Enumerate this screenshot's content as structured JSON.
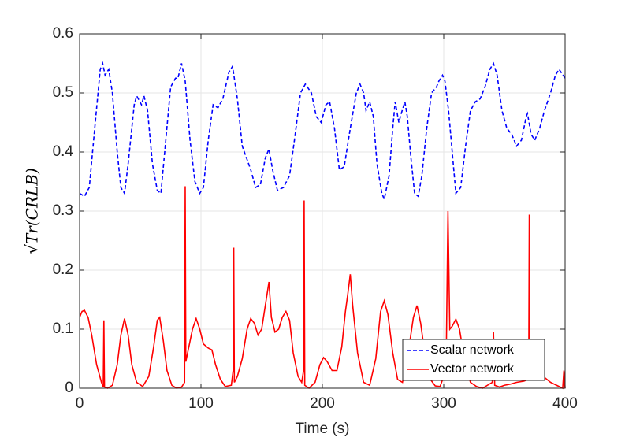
{
  "chart_data": {
    "type": "line",
    "xlabel": "Time (s)",
    "ylabel": "√Tr(CRLB)",
    "xlim": [
      0,
      400
    ],
    "xticks": [
      0,
      100,
      200,
      300,
      400
    ],
    "ylim": [
      0,
      0.6
    ],
    "yticks": [
      0,
      0.1,
      0.2,
      0.3,
      0.4,
      0.5,
      0.6
    ],
    "grid": true,
    "legend": "lower right",
    "series": [
      {
        "name": "Scalar network",
        "color": "#0000ff",
        "dash": "dashed",
        "x": [
          0,
          4,
          8,
          12,
          17,
          19,
          21,
          24,
          27,
          31,
          34,
          37,
          40,
          45,
          47,
          51,
          53,
          56,
          60,
          64,
          67,
          71,
          75,
          79,
          81,
          84,
          87,
          91,
          95,
          99,
          102,
          106,
          110,
          114,
          118,
          123,
          126,
          130,
          134,
          141,
          145,
          149,
          153,
          156,
          159,
          163,
          168,
          173,
          177,
          182,
          186,
          191,
          195,
          199,
          203,
          206,
          210,
          214,
          218,
          223,
          228,
          231,
          234,
          236,
          239,
          242,
          245,
          249,
          251,
          255,
          258,
          260,
          263,
          265,
          268,
          270,
          273,
          276,
          279,
          282,
          286,
          290,
          294,
          296,
          299,
          301,
          304,
          307,
          310,
          314,
          318,
          322,
          326,
          330,
          334,
          338,
          341,
          344,
          348,
          352,
          356,
          360,
          364,
          368,
          369,
          372,
          375,
          379,
          383,
          388,
          392,
          395,
          400
        ],
        "values": [
          0.33,
          0.325,
          0.34,
          0.43,
          0.54,
          0.55,
          0.53,
          0.54,
          0.5,
          0.4,
          0.34,
          0.33,
          0.38,
          0.48,
          0.495,
          0.48,
          0.495,
          0.47,
          0.38,
          0.335,
          0.33,
          0.42,
          0.51,
          0.525,
          0.525,
          0.55,
          0.52,
          0.42,
          0.35,
          0.33,
          0.34,
          0.42,
          0.48,
          0.475,
          0.49,
          0.535,
          0.545,
          0.49,
          0.41,
          0.37,
          0.34,
          0.345,
          0.39,
          0.405,
          0.37,
          0.335,
          0.34,
          0.36,
          0.42,
          0.5,
          0.515,
          0.5,
          0.46,
          0.45,
          0.48,
          0.485,
          0.44,
          0.37,
          0.375,
          0.44,
          0.5,
          0.515,
          0.5,
          0.47,
          0.485,
          0.46,
          0.38,
          0.33,
          0.32,
          0.36,
          0.44,
          0.485,
          0.45,
          0.465,
          0.485,
          0.46,
          0.39,
          0.33,
          0.325,
          0.36,
          0.44,
          0.5,
          0.51,
          0.52,
          0.53,
          0.52,
          0.47,
          0.4,
          0.33,
          0.34,
          0.41,
          0.47,
          0.485,
          0.49,
          0.51,
          0.54,
          0.55,
          0.53,
          0.47,
          0.44,
          0.43,
          0.41,
          0.42,
          0.46,
          0.465,
          0.43,
          0.42,
          0.44,
          0.47,
          0.5,
          0.53,
          0.54,
          0.525
        ]
      },
      {
        "name": "Vector network",
        "color": "#ff0000",
        "dash": "solid",
        "x": [
          0,
          2,
          4,
          7,
          10,
          14,
          18,
          19.5,
          20,
          20.5,
          23,
          27,
          31,
          34,
          37,
          40,
          43,
          47,
          52,
          57,
          61,
          64,
          66,
          69,
          72,
          76,
          80,
          84,
          86.5,
          87,
          87.5,
          89,
          93,
          96,
          99,
          102,
          106,
          109,
          112,
          116,
          120,
          125,
          126.5,
          127,
          127.5,
          130,
          134,
          138,
          141,
          144,
          147,
          150,
          153,
          156,
          158,
          161,
          164,
          167,
          170,
          173,
          176,
          180,
          183,
          184.5,
          185,
          185.5,
          189,
          194,
          198,
          201,
          204,
          208,
          212,
          216,
          219,
          221,
          223,
          225,
          229,
          234,
          239,
          244,
          248,
          251,
          254,
          258,
          262,
          266,
          270,
          275,
          278,
          281,
          285,
          289,
          293,
          297,
          300,
          302,
          303.5,
          305,
          307,
          310,
          313,
          317,
          322,
          327,
          332,
          336,
          340,
          341,
          342,
          346,
          350,
          355,
          360,
          366,
          370,
          370.5,
          371,
          376,
          382,
          388,
          393,
          398,
          399,
          400
        ],
        "values": [
          0.12,
          0.13,
          0.132,
          0.12,
          0.09,
          0.04,
          0.01,
          0.002,
          0.115,
          0.002,
          0,
          0.005,
          0.04,
          0.09,
          0.118,
          0.09,
          0.04,
          0.01,
          0.003,
          0.02,
          0.07,
          0.115,
          0.12,
          0.08,
          0.03,
          0.005,
          0,
          0.002,
          0.01,
          0.342,
          0.045,
          0.06,
          0.1,
          0.118,
          0.1,
          0.075,
          0.068,
          0.065,
          0.04,
          0.015,
          0.003,
          0.005,
          0.03,
          0.238,
          0.01,
          0.02,
          0.05,
          0.1,
          0.118,
          0.11,
          0.09,
          0.1,
          0.14,
          0.18,
          0.12,
          0.095,
          0.1,
          0.12,
          0.13,
          0.115,
          0.06,
          0.02,
          0.01,
          0.03,
          0.318,
          0.005,
          0,
          0.01,
          0.04,
          0.052,
          0.045,
          0.03,
          0.03,
          0.07,
          0.13,
          0.16,
          0.193,
          0.14,
          0.06,
          0.01,
          0.005,
          0.05,
          0.13,
          0.148,
          0.125,
          0.06,
          0.015,
          0.01,
          0.05,
          0.12,
          0.14,
          0.11,
          0.05,
          0.015,
          0.004,
          0.003,
          0.02,
          0.04,
          0.3,
          0.1,
          0.105,
          0.117,
          0.1,
          0.05,
          0.01,
          0.003,
          0,
          0.005,
          0.01,
          0.095,
          0.005,
          0.002,
          0.005,
          0.007,
          0.01,
          0.012,
          0.015,
          0.294,
          0.02,
          0.03,
          0.02,
          0.01,
          0.005,
          0,
          0.03,
          0
        ]
      }
    ]
  }
}
